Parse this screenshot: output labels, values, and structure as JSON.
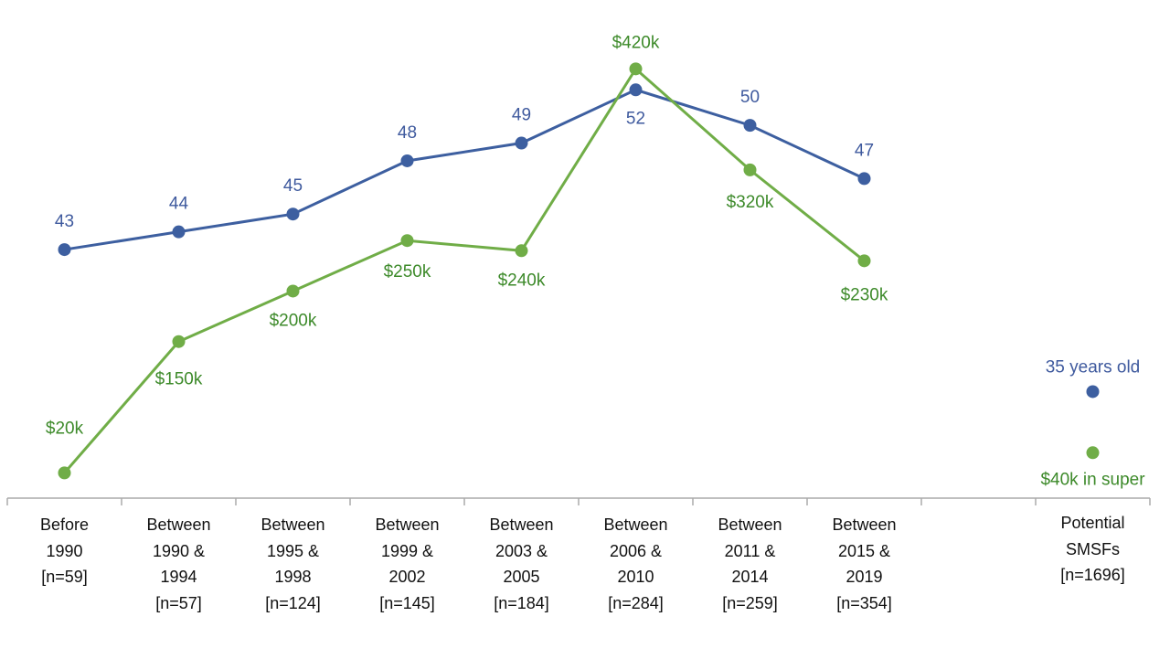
{
  "chart_data": {
    "type": "line",
    "categories": [
      "Before\n1990\n[n=59]",
      "Between\n1990 &\n1994\n[n=57]",
      "Between\n1995 &\n1998\n[n=124]",
      "Between\n1999 &\n2002\n[n=145]",
      "Between\n2003 &\n2005\n[n=184]",
      "Between\n2006 &\n2010\n[n=284]",
      "Between\n2011 &\n2014\n[n=259]",
      "Between\n2015 &\n2019\n[n=354]",
      null,
      "Potential\nSMSFs\n[n=1696]"
    ],
    "series": [
      {
        "name": "35 years old",
        "color": "#3d5fa0",
        "values": [
          43,
          44,
          45,
          48,
          49,
          52,
          50,
          47,
          null,
          35
        ],
        "value_labels": [
          "43",
          "44",
          "45",
          "48",
          "49",
          "52",
          "50",
          "47",
          null,
          null
        ]
      },
      {
        "name": "$40k in super",
        "color": "#70ad47",
        "axis": "y2",
        "values": [
          20,
          150,
          200,
          250,
          240,
          420,
          320,
          230,
          null,
          40
        ],
        "value_labels": [
          "$20k",
          "$150k",
          "$200k",
          "$250k",
          "$240k",
          "$420k",
          "$320k",
          "$230k",
          null,
          null
        ]
      }
    ],
    "ylim": [
      29,
      55
    ],
    "y2lim": [
      -5,
      452
    ]
  }
}
